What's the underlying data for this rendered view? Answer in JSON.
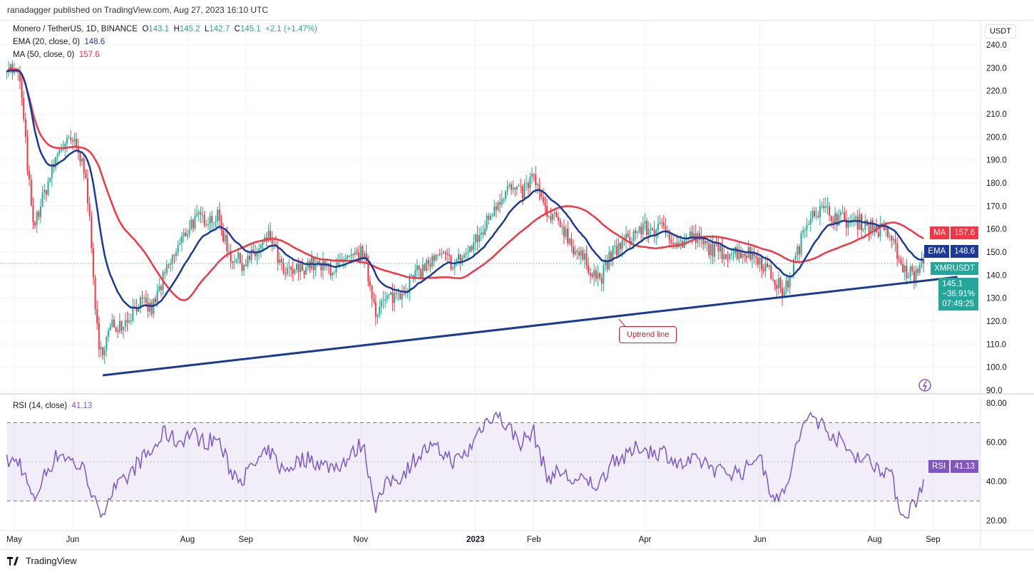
{
  "header": {
    "published": "ranadagger published on TradingView.com, Aug 27, 2023 16:10 UTC"
  },
  "legend": {
    "symbol": "Monero / TetherUS, 1D, BINANCE",
    "o_label": "O",
    "o": "143.1",
    "h_label": "H",
    "h": "145.2",
    "l_label": "L",
    "l": "142.7",
    "c_label": "C",
    "c": "145.1",
    "change": "+2.1 (+1.47%)",
    "ema": "EMA (20, close, 0)",
    "ema_val": "148.6",
    "ma": "MA (50, close, 0)",
    "ma_val": "157.6",
    "rsi": "RSI (14, close)",
    "rsi_val": "41.13"
  },
  "price_scale": {
    "currency": "USDT",
    "ticks": [
      "240.0",
      "230.0",
      "220.0",
      "210.0",
      "200.0",
      "190.0",
      "180.0",
      "170.0",
      "160.0",
      "150.0",
      "140.0",
      "130.0",
      "120.0",
      "110.0",
      "100.0",
      "90.0"
    ]
  },
  "rsi_scale": {
    "ticks": [
      "80.00",
      "60.00",
      "40.00",
      "20.00"
    ]
  },
  "tags": {
    "ma_label": "MA",
    "ma_val": "157.6",
    "ema_label": "EMA",
    "ema_val": "148.6",
    "sym": "XMRUSDT",
    "price": "145.1",
    "pct": "−36.91%",
    "countdown": "07:49:25",
    "rsi_label": "RSI",
    "rsi_val": "41.13"
  },
  "annotation": "Uptrend line",
  "footer": {
    "brand": "TradingView"
  },
  "colors": {
    "up": "#22ab94",
    "down": "#f23645",
    "ema": "#1c3a94",
    "ma": "#f23645",
    "rsi": "#7e57c2",
    "trend": "#1c3a94"
  },
  "chart_data": {
    "type": "candlestick",
    "title": "Monero / TetherUS, 1D, BINANCE",
    "time_ticks": [
      {
        "label": "May",
        "date": "2022-05-01"
      },
      {
        "label": "Jun",
        "date": "2022-06-01"
      },
      {
        "label": "Aug",
        "date": "2022-08-01"
      },
      {
        "label": "Sep",
        "date": "2022-09-01"
      },
      {
        "label": "Nov",
        "date": "2022-11-01"
      },
      {
        "label": "2023",
        "date": "2023-01-01"
      },
      {
        "label": "Feb",
        "date": "2023-02-01"
      },
      {
        "label": "Apr",
        "date": "2023-04-01"
      },
      {
        "label": "Jun",
        "date": "2023-06-01"
      },
      {
        "label": "Aug",
        "date": "2023-08-01"
      },
      {
        "label": "Sep",
        "date": "2023-09-01"
      }
    ],
    "ylim": [
      90,
      240
    ],
    "rsi_ylim": [
      20,
      80
    ],
    "rsi_bands": [
      30,
      70
    ],
    "start_date": "2022-04-27",
    "step_days": 7,
    "close": [
      232,
      225,
      160,
      178,
      195,
      198,
      185,
      105,
      118,
      120,
      128,
      125,
      140,
      152,
      163,
      165,
      165,
      148,
      145,
      150,
      157,
      140,
      142,
      145,
      143,
      143,
      146,
      150,
      125,
      130,
      133,
      140,
      145,
      148,
      145,
      150,
      158,
      170,
      178,
      175,
      183,
      165,
      163,
      152,
      145,
      138,
      150,
      155,
      160,
      160,
      160,
      153,
      157,
      153,
      150,
      150,
      150,
      148,
      140,
      132,
      150,
      168,
      168,
      165,
      163,
      163,
      160,
      158,
      142,
      140,
      145.1
    ],
    "rsi": [
      50,
      50,
      30,
      45,
      55,
      50,
      45,
      22,
      35,
      40,
      50,
      55,
      65,
      60,
      65,
      60,
      62,
      45,
      42,
      50,
      55,
      45,
      50,
      52,
      48,
      48,
      52,
      60,
      28,
      40,
      43,
      52,
      57,
      55,
      50,
      55,
      68,
      75,
      68,
      60,
      65,
      42,
      45,
      40,
      40,
      38,
      52,
      52,
      58,
      55,
      55,
      48,
      50,
      50,
      45,
      45,
      45,
      55,
      35,
      32,
      60,
      75,
      68,
      62,
      55,
      52,
      48,
      45,
      22,
      30,
      41.13
    ],
    "last_date": "2023-08-27",
    "trendline": [
      {
        "date": "2022-06-17",
        "price": 96.5
      },
      {
        "date": "2023-09-14",
        "price": 139.2
      }
    ]
  }
}
